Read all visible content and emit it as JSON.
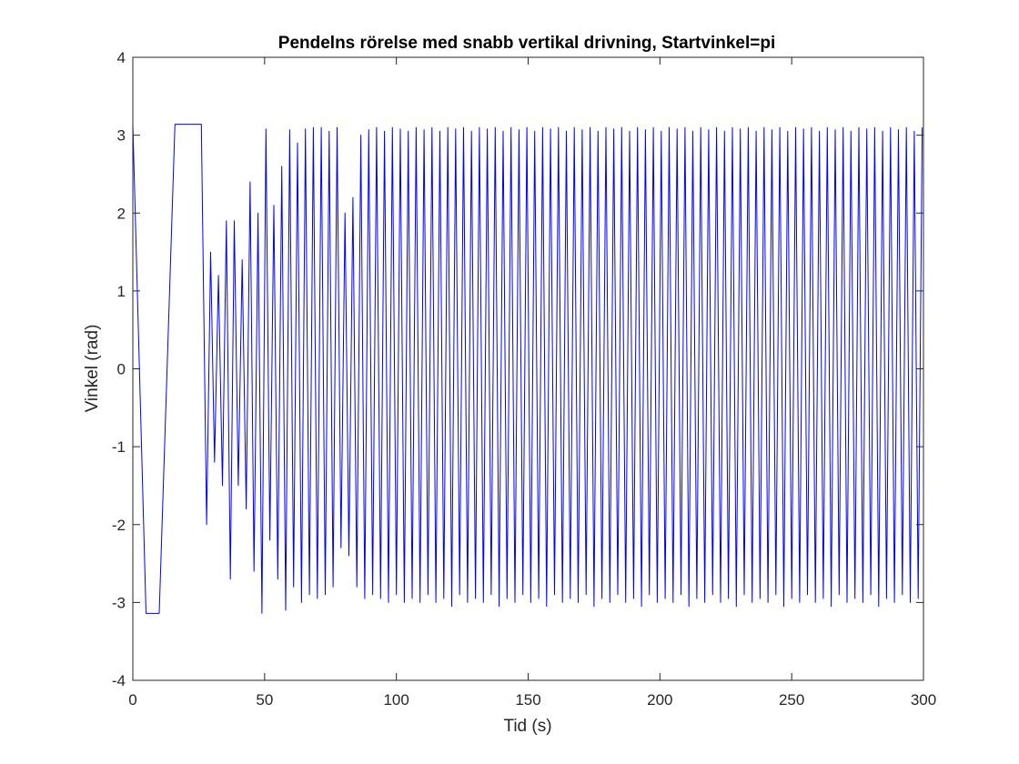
{
  "chart_data": {
    "type": "line",
    "title": "Pendelns rörelse med snabb vertikal drivning, Startvinkel=pi",
    "xlabel": "Tid (s)",
    "ylabel": "Vinkel (rad)",
    "xlim": [
      0,
      300
    ],
    "ylim": [
      -4,
      4
    ],
    "xticks": [
      0,
      50,
      100,
      150,
      200,
      250,
      300
    ],
    "yticks": [
      -4,
      -3,
      -2,
      -1,
      0,
      1,
      2,
      3,
      4
    ],
    "grid": false,
    "legend": "none",
    "line_color": "#0000ff",
    "series": [
      {
        "description_note": "",
        "x": [
          0,
          5,
          10,
          16,
          26,
          28,
          29.5,
          31,
          32.5,
          34,
          35.5,
          37,
          38.5,
          40,
          41.5,
          43,
          44.5,
          46,
          47.5,
          49,
          50.5,
          52,
          53.5,
          55,
          56.5,
          58,
          59.5,
          61,
          62.5,
          64,
          65.5,
          67,
          68.5,
          70,
          71.5,
          73,
          74.5,
          76,
          77.5,
          79,
          80.5,
          82,
          83.5,
          85,
          86.5,
          88,
          89.5,
          91,
          92.5,
          94,
          95.5,
          97,
          98.5,
          100,
          101.5,
          103,
          104.5,
          106,
          107.5,
          109,
          110.5,
          112,
          113.5,
          115,
          116.5,
          118,
          119.5,
          121,
          122.5,
          124,
          125.5,
          127,
          128.5,
          130,
          131.5,
          133,
          134.5,
          136,
          137.5,
          139,
          140.5,
          142,
          143.5,
          145,
          146.5,
          148,
          149.5,
          151,
          152.5,
          154,
          155.5,
          157,
          158.5,
          160,
          161.5,
          163,
          164.5,
          166,
          167.5,
          169,
          170.5,
          172,
          173.5,
          175,
          176.5,
          178,
          179.5,
          181,
          182.5,
          184,
          185.5,
          187,
          188.5,
          190,
          191.5,
          193,
          194.5,
          196,
          197.5,
          199,
          200.5,
          202,
          203.5,
          205,
          206.5,
          208,
          209.5,
          211,
          212.5,
          214,
          215.5,
          217,
          218.5,
          220,
          221.5,
          223,
          224.5,
          226,
          227.5,
          229,
          230.5,
          232,
          233.5,
          235,
          236.5,
          238,
          239.5,
          241,
          242.5,
          244,
          245.5,
          247,
          248.5,
          250,
          251.5,
          253,
          254.5,
          256,
          257.5,
          259,
          260.5,
          262,
          263.5,
          265,
          266.5,
          268,
          269.5,
          271,
          272.5,
          274,
          275.5,
          277,
          278.5,
          280,
          281.5,
          283,
          284.5,
          286,
          287.5,
          289,
          290.5,
          292,
          293.5,
          295,
          296.5,
          298,
          299.5
        ],
        "y": [
          3.14,
          -3.14,
          -3.14,
          3.14,
          3.14,
          -2.0,
          1.5,
          -1.2,
          1.2,
          -1.5,
          1.9,
          -2.7,
          1.9,
          -1.5,
          1.4,
          -1.8,
          2.4,
          -2.6,
          2.0,
          -3.14,
          3.08,
          -2.2,
          2.1,
          -2.7,
          2.6,
          -3.1,
          3.07,
          -2.8,
          2.9,
          -3.0,
          3.08,
          -2.9,
          3.1,
          -2.95,
          3.1,
          -2.9,
          3.05,
          -2.8,
          3.1,
          -2.3,
          2.0,
          -2.4,
          2.2,
          -2.8,
          3.0,
          -2.95,
          3.07,
          -2.9,
          3.1,
          -2.95,
          3.05,
          -3.0,
          3.1,
          -2.9,
          3.08,
          -3.0,
          3.05,
          -2.95,
          3.1,
          -3.0,
          3.07,
          -2.9,
          3.1,
          -3.0,
          3.05,
          -2.95,
          3.1,
          -3.05,
          3.08,
          -2.9,
          3.1,
          -3.0,
          3.05,
          -2.95,
          3.1,
          -3.0,
          3.08,
          -2.9,
          3.1,
          -3.05,
          3.05,
          -2.95,
          3.1,
          -3.0,
          3.07,
          -2.9,
          3.1,
          -3.0,
          3.05,
          -2.95,
          3.1,
          -3.05,
          3.08,
          -2.9,
          3.1,
          -3.0,
          3.05,
          -2.95,
          3.1,
          -3.0,
          3.07,
          -2.9,
          3.1,
          -3.05,
          3.05,
          -2.95,
          3.1,
          -3.0,
          3.08,
          -2.9,
          3.1,
          -3.0,
          3.05,
          -2.95,
          3.1,
          -3.05,
          3.07,
          -2.9,
          3.1,
          -3.0,
          3.05,
          -2.95,
          3.1,
          -3.0,
          3.08,
          -2.9,
          3.1,
          -3.05,
          3.05,
          -2.95,
          3.1,
          -3.0,
          3.07,
          -2.9,
          3.1,
          -3.0,
          3.05,
          -2.95,
          3.1,
          -3.05,
          3.08,
          -2.9,
          3.1,
          -3.0,
          3.05,
          -2.95,
          3.1,
          -3.0,
          3.07,
          -2.9,
          3.1,
          -3.05,
          3.05,
          -2.95,
          3.1,
          -3.0,
          3.08,
          -2.9,
          3.1,
          -3.0,
          3.05,
          -2.95,
          3.1,
          -3.05,
          3.07,
          -2.9,
          3.1,
          -3.0,
          3.05,
          -2.95,
          3.1,
          -3.0,
          3.08,
          -2.9,
          3.1,
          -3.05,
          3.05,
          -2.95,
          3.1,
          -3.0,
          3.07,
          -2.9,
          3.1,
          -3.0,
          3.05,
          -2.95,
          3.1
        ]
      }
    ]
  }
}
